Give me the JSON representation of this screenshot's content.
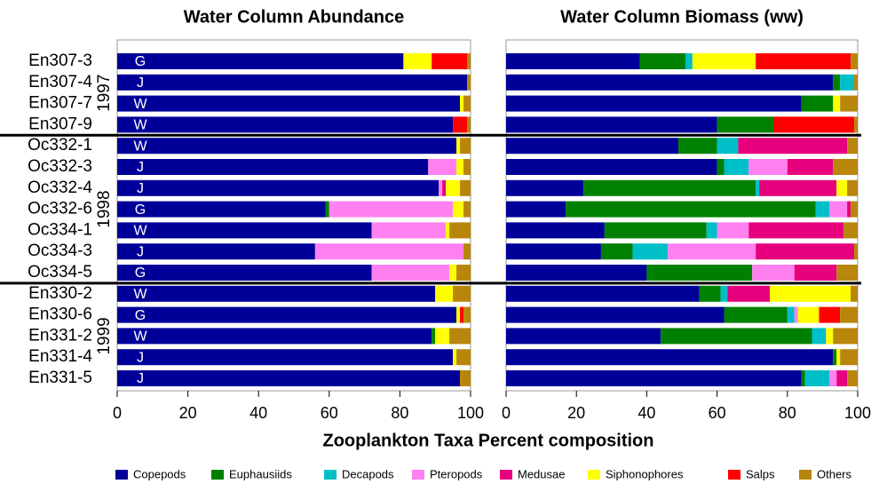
{
  "chart_data": [
    {
      "type": "bar",
      "orientation": "horizontal",
      "stacked": true,
      "title": "Water Column Abundance",
      "xlabel": "Zooplankton Taxa Percent composition",
      "categories": [
        "En307-3",
        "En307-4",
        "En307-7",
        "En307-9",
        "Oc332-1",
        "Oc332-3",
        "Oc332-4",
        "Oc332-6",
        "Oc334-1",
        "Oc334-3",
        "Oc334-5",
        "En330-2",
        "En330-6",
        "En331-2",
        "En331-4",
        "En331-5"
      ],
      "bar_labels": [
        "G",
        "J",
        "W",
        "W",
        "W",
        "J",
        "J",
        "G",
        "W",
        "J",
        "G",
        "W",
        "G",
        "W",
        "J",
        "J"
      ],
      "groups": [
        {
          "label": "1997",
          "rows": 4
        },
        {
          "label": "1998",
          "rows": 7
        },
        {
          "label": "1999",
          "rows": 5
        }
      ],
      "xlim": [
        0,
        100
      ],
      "xticks": [
        0,
        20,
        40,
        60,
        80,
        100
      ],
      "series": [
        {
          "name": "Copepods",
          "color": "#000099",
          "values": [
            81,
            99,
            97,
            95,
            96,
            88,
            91,
            59,
            72,
            56,
            72,
            90,
            96,
            89,
            95,
            97
          ]
        },
        {
          "name": "Euphausiids",
          "color": "#008000",
          "values": [
            0,
            0,
            0,
            0,
            0,
            0,
            0,
            1,
            0,
            0,
            0,
            0,
            0,
            1,
            0,
            0
          ]
        },
        {
          "name": "Decapods",
          "color": "#00bfc8",
          "values": [
            0,
            0,
            0,
            0,
            0,
            0,
            0,
            0,
            0,
            0,
            0,
            0,
            0,
            0,
            0,
            0
          ]
        },
        {
          "name": "Pteropods",
          "color": "#ff80f0",
          "values": [
            0,
            0,
            0,
            0,
            0,
            8,
            1,
            35,
            21,
            42,
            22,
            0,
            0,
            0,
            0,
            0
          ]
        },
        {
          "name": "Medusae",
          "color": "#e6007e",
          "values": [
            0,
            0,
            0,
            0,
            0,
            0,
            1,
            0,
            0,
            0,
            0,
            0,
            0,
            0,
            0,
            0
          ]
        },
        {
          "name": "Siphonophores",
          "color": "#ffff00",
          "values": [
            8,
            0,
            1,
            0,
            1,
            2,
            4,
            3,
            1,
            0,
            2,
            5,
            1,
            4,
            1,
            0
          ]
        },
        {
          "name": "Salps",
          "color": "#ff0000",
          "values": [
            10,
            0,
            0,
            4,
            0,
            0,
            0,
            0,
            0,
            0,
            0,
            0,
            1,
            0,
            0,
            0
          ]
        },
        {
          "name": "Others",
          "color": "#b8860b",
          "values": [
            1,
            1,
            2,
            1,
            3,
            2,
            3,
            2,
            6,
            2,
            4,
            5,
            2,
            6,
            4,
            3
          ]
        }
      ]
    },
    {
      "type": "bar",
      "orientation": "horizontal",
      "stacked": true,
      "title": "Water Column Biomass (ww)",
      "xlim": [
        0,
        100
      ],
      "xticks": [
        0,
        20,
        40,
        60,
        80,
        100
      ],
      "series": [
        {
          "color": "#000099",
          "values": [
            38,
            93,
            84,
            60,
            49,
            60,
            22,
            17,
            28,
            27,
            40,
            55,
            62,
            44,
            93,
            84
          ]
        },
        {
          "color": "#008000",
          "values": [
            13,
            2,
            9,
            16,
            11,
            2,
            49,
            71,
            29,
            9,
            30,
            6,
            18,
            43,
            1,
            1
          ]
        },
        {
          "color": "#00bfc8",
          "values": [
            2,
            4,
            0,
            0,
            6,
            7,
            1,
            4,
            3,
            10,
            0,
            2,
            2,
            4,
            0,
            7
          ]
        },
        {
          "color": "#ff80f0",
          "values": [
            0,
            0,
            0,
            0,
            0,
            11,
            0,
            5,
            9,
            25,
            12,
            0,
            1,
            0,
            0,
            2
          ]
        },
        {
          "color": "#e6007e",
          "values": [
            0,
            0,
            0,
            0,
            31,
            13,
            22,
            1,
            27,
            28,
            12,
            12,
            0,
            0,
            0,
            3
          ]
        },
        {
          "color": "#ffff00",
          "values": [
            18,
            0,
            2,
            0,
            0,
            0,
            3,
            0,
            0,
            0,
            0,
            23,
            6,
            2,
            1,
            0
          ]
        },
        {
          "color": "#ff0000",
          "values": [
            27,
            0,
            0,
            23,
            0,
            0,
            0,
            0,
            0,
            0,
            0,
            0,
            6,
            0,
            0,
            0
          ]
        },
        {
          "color": "#b8860b",
          "values": [
            2,
            1,
            5,
            1,
            3,
            7,
            3,
            2,
            4,
            1,
            6,
            2,
            5,
            7,
            5,
            3
          ]
        }
      ]
    }
  ]
}
